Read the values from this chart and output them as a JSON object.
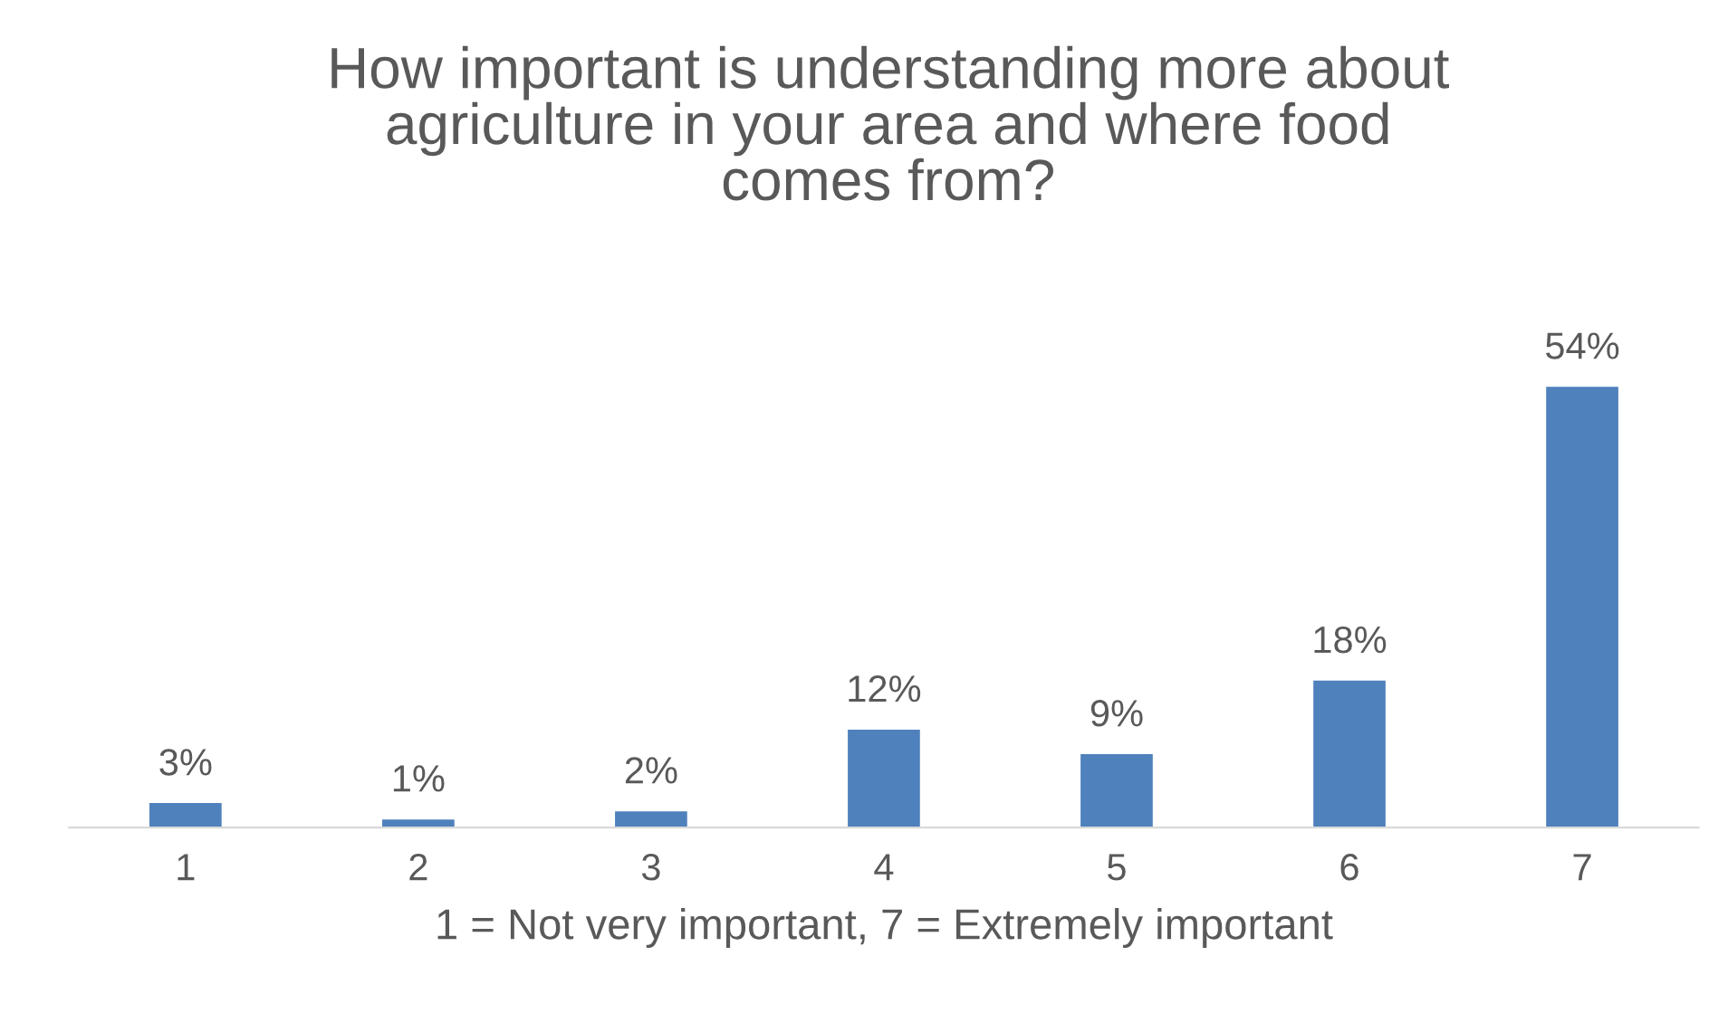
{
  "chart_data": {
    "type": "bar",
    "title": "How important is understanding more about\nagriculture in your area and where food\ncomes from?",
    "xlabel": "1 = Not very important, 7 = Extremely important",
    "categories": [
      "1",
      "2",
      "3",
      "4",
      "5",
      "6",
      "7"
    ],
    "values": [
      3,
      1,
      2,
      12,
      9,
      18,
      54
    ],
    "value_labels": [
      "3%",
      "1%",
      "2%",
      "12%",
      "9%",
      "18%",
      "54%"
    ],
    "color": "#4f81bd",
    "grid": false,
    "legend": false
  }
}
